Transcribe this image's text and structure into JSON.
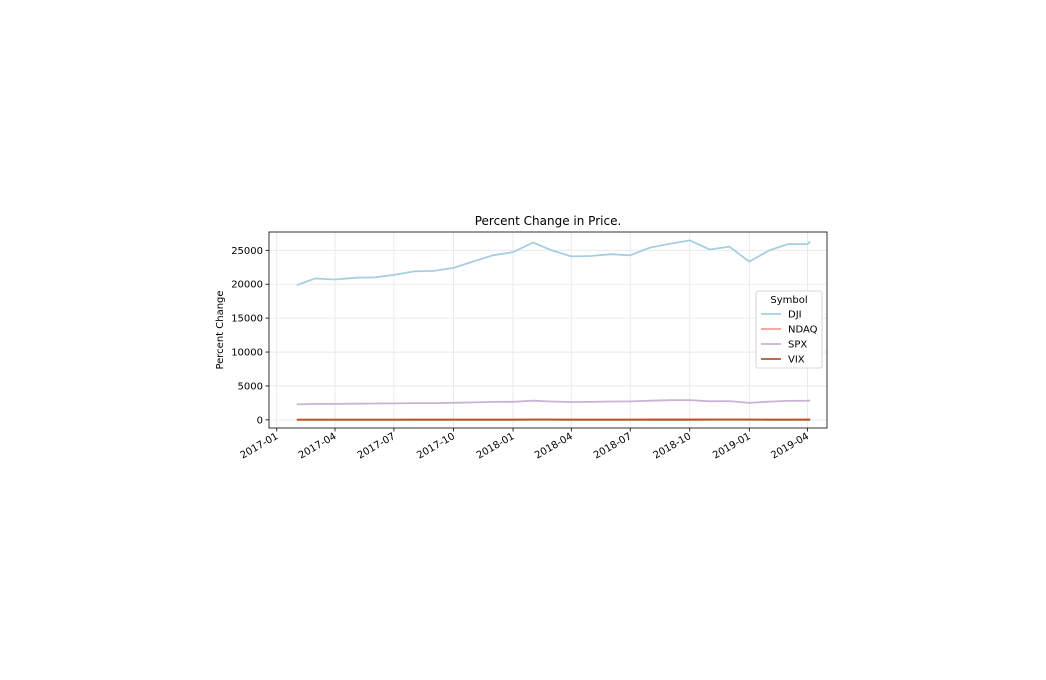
{
  "chart_data": {
    "type": "line",
    "title": "Percent Change in Price.",
    "xlabel": "",
    "ylabel": "Percent Change",
    "ylim": [
      -1200,
      27700
    ],
    "xlim": [
      "2016-12-20",
      "2019-05-01"
    ],
    "grid": true,
    "legend": {
      "title": "Symbol",
      "placement": "center-right"
    },
    "x_ticks": [
      "2017-01",
      "2017-04",
      "2017-07",
      "2017-10",
      "2018-01",
      "2018-04",
      "2018-07",
      "2018-10",
      "2019-01",
      "2019-04"
    ],
    "y_ticks": [
      0,
      5000,
      10000,
      15000,
      20000,
      25000
    ],
    "x": [
      "2017-02-01",
      "2017-03-01",
      "2017-04-01",
      "2017-05-01",
      "2017-06-01",
      "2017-07-01",
      "2017-08-01",
      "2017-09-01",
      "2017-10-01",
      "2017-11-01",
      "2017-12-01",
      "2018-01-01",
      "2018-02-01",
      "2018-03-01",
      "2018-04-01",
      "2018-05-01",
      "2018-06-01",
      "2018-07-01",
      "2018-08-01",
      "2018-09-01",
      "2018-10-01",
      "2018-11-01",
      "2018-12-01",
      "2019-01-01",
      "2019-02-01",
      "2019-03-01",
      "2019-04-01",
      "2019-04-05"
    ],
    "series": [
      {
        "name": "DJI",
        "color": "#a6cee3",
        "values": [
          19860,
          20840,
          20700,
          20950,
          21010,
          21380,
          21890,
          21960,
          22410,
          23370,
          24270,
          24720,
          26150,
          25010,
          24100,
          24160,
          24420,
          24270,
          25420,
          25960,
          26460,
          25120,
          25540,
          23330,
          24990,
          25900,
          25920,
          26320
        ]
      },
      {
        "name": "NDAQ",
        "color": "#fb9a99",
        "values": [
          68,
          70,
          69,
          71,
          73,
          74,
          76,
          77,
          78,
          80,
          81,
          82,
          85,
          87,
          86,
          88,
          89,
          90,
          92,
          93,
          95,
          88,
          86,
          84,
          88,
          90,
          93,
          94
        ]
      },
      {
        "name": "SPX",
        "color": "#cab2d6",
        "values": [
          2280,
          2360,
          2360,
          2380,
          2410,
          2420,
          2470,
          2470,
          2520,
          2580,
          2650,
          2670,
          2820,
          2710,
          2640,
          2650,
          2710,
          2720,
          2820,
          2900,
          2920,
          2740,
          2760,
          2500,
          2700,
          2790,
          2830,
          2860
        ]
      },
      {
        "name": "VIX",
        "color": "#b15928",
        "values": [
          12,
          11,
          12,
          11,
          10,
          11,
          10,
          11,
          10,
          10,
          11,
          11,
          19,
          17,
          16,
          14,
          13,
          13,
          12,
          13,
          13,
          19,
          18,
          25,
          16,
          14,
          13,
          13
        ]
      }
    ]
  }
}
